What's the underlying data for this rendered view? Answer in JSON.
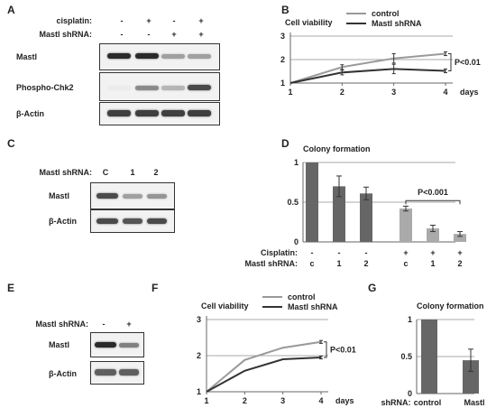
{
  "panels": {
    "A": {
      "label": "A",
      "row1_label": "cisplatin:",
      "row1_signs": [
        "-",
        "+",
        "-",
        "+"
      ],
      "row2_label": "Mastl shRNA:",
      "row2_signs": [
        "-",
        "-",
        "+",
        "+"
      ],
      "blots": [
        {
          "name": "Mastl",
          "intensity": [
            0.9,
            0.9,
            0.35,
            0.35
          ]
        },
        {
          "name": "Phospho-Chk2",
          "intensity": [
            0.0,
            0.45,
            0.25,
            0.75
          ]
        },
        {
          "name": "β-Actin",
          "intensity": [
            0.8,
            0.8,
            0.8,
            0.8
          ]
        }
      ]
    },
    "C": {
      "label": "C",
      "row_label": "Mastl shRNA:",
      "lanes": [
        "C",
        "1",
        "2"
      ],
      "blots": [
        {
          "name": "Mastl",
          "intensity": [
            0.75,
            0.35,
            0.4
          ]
        },
        {
          "name": "β-Actin",
          "intensity": [
            0.75,
            0.7,
            0.75
          ]
        }
      ]
    },
    "E": {
      "label": "E",
      "row_label": "Mastl shRNA:",
      "lanes": [
        "-",
        "+"
      ],
      "blots": [
        {
          "name": "Mastl",
          "intensity": [
            0.9,
            0.5
          ]
        },
        {
          "name": "β-Actin",
          "intensity": [
            0.65,
            0.65
          ]
        }
      ]
    },
    "B": {
      "label": "B"
    },
    "D": {
      "label": "D"
    },
    "F": {
      "label": "F"
    },
    "G": {
      "label": "G"
    }
  },
  "chart_data": [
    {
      "id": "B",
      "type": "line",
      "title": "Cell viability",
      "x": [
        1,
        2,
        3,
        4
      ],
      "xlabel": "days",
      "ylim": [
        1,
        3
      ],
      "yticks": [
        1,
        2,
        3
      ],
      "grid": true,
      "series": [
        {
          "name": "control",
          "values": [
            1.0,
            1.68,
            2.05,
            2.25
          ],
          "err": [
            0,
            0.1,
            0.2,
            0.08
          ],
          "color": "#999999"
        },
        {
          "name": "Mastl shRNA",
          "values": [
            1.0,
            1.45,
            1.6,
            1.52
          ],
          "err": [
            0,
            0.1,
            0.2,
            0.08
          ],
          "color": "#333333"
        }
      ],
      "annotation": "P<0.01"
    },
    {
      "id": "D",
      "type": "bar",
      "title": "Colony formation",
      "ylim": [
        0,
        1
      ],
      "yticks": [
        "0",
        "0.5",
        "1"
      ],
      "values": [
        1.0,
        0.7,
        0.61,
        0.42,
        0.17,
        0.1
      ],
      "err": [
        0,
        0.13,
        0.08,
        0.03,
        0.04,
        0.03
      ],
      "colors": [
        "#666666",
        "#666666",
        "#666666",
        "#aaaaaa",
        "#aaaaaa",
        "#aaaaaa"
      ],
      "row1_label": "Cisplatin:",
      "row1": [
        "-",
        "-",
        "-",
        "+",
        "+",
        "+"
      ],
      "row2_label": "Mastl shRNA:",
      "row2": [
        "c",
        "1",
        "2",
        "c",
        "1",
        "2"
      ],
      "annotation": "P<0.001"
    },
    {
      "id": "F",
      "type": "line",
      "title": "Cell viability",
      "x": [
        1,
        2,
        3,
        4
      ],
      "xlabel": "days",
      "ylim": [
        1,
        3
      ],
      "yticks": [
        1,
        2,
        3
      ],
      "grid": true,
      "series": [
        {
          "name": "control",
          "values": [
            1.0,
            1.88,
            2.22,
            2.38
          ],
          "err": [
            0,
            0,
            0,
            0.04
          ],
          "color": "#999999"
        },
        {
          "name": "Mastl shRNA",
          "values": [
            1.0,
            1.58,
            1.9,
            1.95
          ],
          "err": [
            0,
            0,
            0,
            0.04
          ],
          "color": "#333333"
        }
      ],
      "annotation": "P<0.01"
    },
    {
      "id": "G",
      "type": "bar",
      "title": "Colony formation",
      "ylim": [
        0,
        1
      ],
      "yticks": [
        "0",
        "0.5",
        "1"
      ],
      "xlabel": "shRNA:",
      "categories": [
        "control",
        "Mastl"
      ],
      "values": [
        1.0,
        0.45
      ],
      "err": [
        0,
        0.15
      ],
      "colors": [
        "#666666",
        "#666666"
      ]
    }
  ]
}
